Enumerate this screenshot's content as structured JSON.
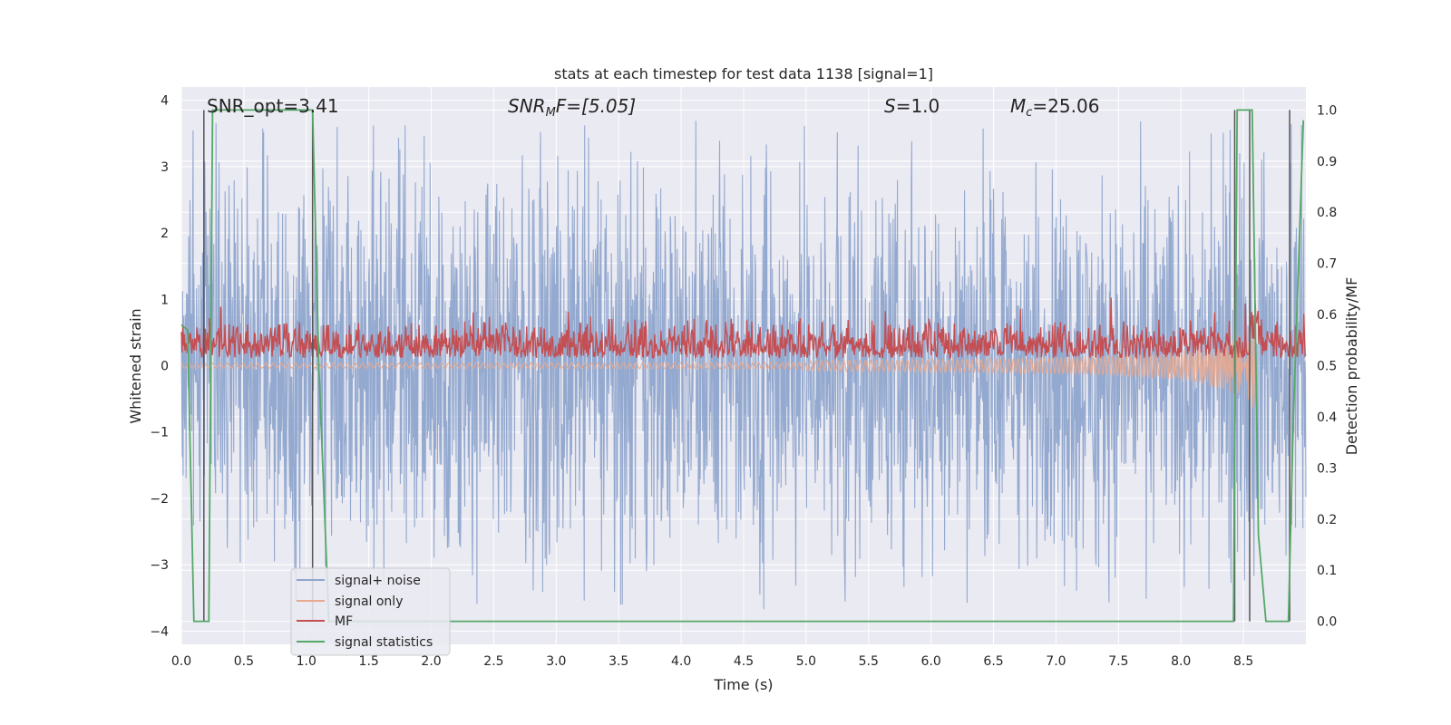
{
  "chart_data": {
    "type": "line",
    "title": "stats at each timestep for test data 1138 [signal=1]",
    "xlabel": "Time (s)",
    "ylabel": "Whitened strain",
    "y2label": "Detection probability/MF",
    "xlim": [
      0,
      9.0
    ],
    "ylim": [
      -4.2,
      4.2
    ],
    "y2lim": [
      -0.045,
      1.045
    ],
    "xticks": [
      "0.0",
      "0.5",
      "1.0",
      "1.5",
      "2.0",
      "2.5",
      "3.0",
      "3.5",
      "4.0",
      "4.5",
      "5.0",
      "5.5",
      "6.0",
      "6.5",
      "7.0",
      "7.5",
      "8.0",
      "8.5"
    ],
    "yticks": [
      "4",
      "3",
      "2",
      "1",
      "0",
      "−1",
      "−2",
      "−3",
      "−4"
    ],
    "y2ticks": [
      "1.0",
      "0.9",
      "0.8",
      "0.7",
      "0.6",
      "0.5",
      "0.4",
      "0.3",
      "0.2",
      "0.1",
      "0.0"
    ],
    "grid": true,
    "legend_position": "lower-left",
    "annotations": {
      "snr_opt": "SNR_opt=3.41",
      "snr_mf_prefix": "SNR",
      "snr_mf_sub": "M",
      "snr_mf_suffix": "F=[5.05]",
      "s_prefix": "S",
      "s_value": "=1.0",
      "mc_prefix": "M",
      "mc_sub": "c",
      "mc_value": "=25.06"
    },
    "vlines_x": [
      0.18,
      1.05,
      8.43,
      8.55,
      8.87
    ],
    "series": [
      {
        "name": "signal+ noise",
        "color": "#8fa5cc",
        "description_type": "noise",
        "amplitude_range": [
          -3.8,
          3.9
        ]
      },
      {
        "name": "signal only",
        "color": "#e8a98f",
        "description_type": "chirp",
        "chirp_end_x": 8.62
      },
      {
        "name": "MF",
        "color": "#c44e52",
        "description_type": "mf",
        "axis": "right"
      },
      {
        "name": "signal statistics",
        "color": "#55a868",
        "axis": "right",
        "x": [
          0.0,
          0.05,
          0.1,
          0.17,
          0.22,
          0.25,
          0.3,
          1.0,
          1.05,
          1.1,
          1.18,
          1.3,
          8.42,
          8.45,
          8.5,
          8.57,
          8.62,
          8.68,
          8.86,
          8.9,
          8.98
        ],
        "y": [
          0.58,
          0.57,
          0.0,
          0.0,
          0.0,
          1.0,
          1.0,
          1.0,
          1.0,
          0.5,
          0.0,
          0.0,
          0.0,
          1.0,
          1.0,
          1.0,
          0.17,
          0.0,
          0.0,
          0.4,
          0.98
        ]
      }
    ]
  }
}
